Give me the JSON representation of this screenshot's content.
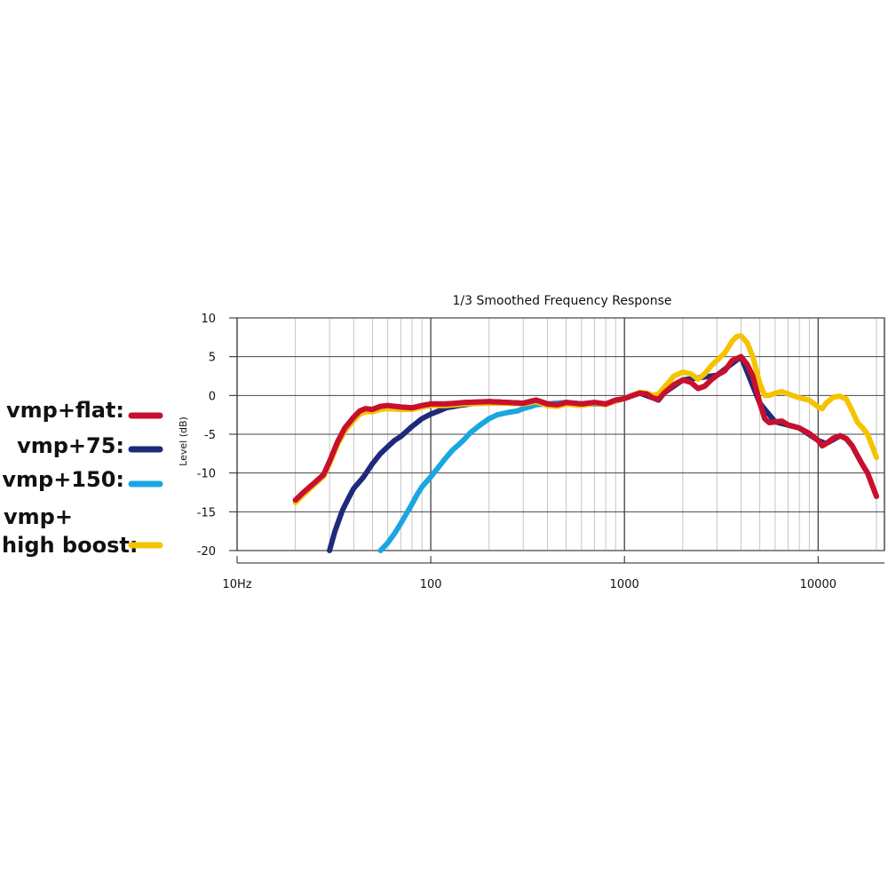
{
  "chart_data": {
    "type": "line",
    "title": "1/3 Smoothed Frequency Response",
    "xlabel": "",
    "ylabel": "Level (dB)",
    "xscale": "log",
    "xlim": [
      10,
      22000
    ],
    "ylim": [
      -20,
      10
    ],
    "xticks": [
      {
        "value": 10,
        "label": "10Hz"
      },
      {
        "value": 100,
        "label": "100"
      },
      {
        "value": 1000,
        "label": "1000"
      },
      {
        "value": 10000,
        "label": "10000"
      }
    ],
    "yticks": [
      {
        "value": 10,
        "label": "10"
      },
      {
        "value": 5,
        "label": "5"
      },
      {
        "value": 0,
        "label": "0"
      },
      {
        "value": -5,
        "label": "-5"
      },
      {
        "value": -10,
        "label": "-10"
      },
      {
        "value": -15,
        "label": "-15"
      },
      {
        "value": -20,
        "label": "-20"
      }
    ],
    "grid": true,
    "legend_position": "left",
    "series": [
      {
        "name": "vmp+flat:",
        "legend": [
          "vmp+flat:"
        ],
        "color": "#c8102e",
        "points": [
          [
            20,
            -13.5
          ],
          [
            22,
            -12.5
          ],
          [
            25,
            -11.3
          ],
          [
            28,
            -10.2
          ],
          [
            30,
            -8.5
          ],
          [
            33,
            -6
          ],
          [
            36,
            -4.2
          ],
          [
            40,
            -2.8
          ],
          [
            43,
            -2
          ],
          [
            46,
            -1.7
          ],
          [
            50,
            -1.8
          ],
          [
            55,
            -1.4
          ],
          [
            60,
            -1.3
          ],
          [
            70,
            -1.5
          ],
          [
            80,
            -1.6
          ],
          [
            90,
            -1.3
          ],
          [
            100,
            -1.1
          ],
          [
            120,
            -1.1
          ],
          [
            150,
            -0.9
          ],
          [
            200,
            -0.8
          ],
          [
            250,
            -0.9
          ],
          [
            300,
            -1
          ],
          [
            350,
            -0.6
          ],
          [
            400,
            -1.1
          ],
          [
            450,
            -1.2
          ],
          [
            500,
            -0.9
          ],
          [
            600,
            -1.1
          ],
          [
            700,
            -0.9
          ],
          [
            800,
            -1.1
          ],
          [
            900,
            -0.6
          ],
          [
            1000,
            -0.4
          ],
          [
            1100,
            0
          ],
          [
            1200,
            0.3
          ],
          [
            1300,
            0.2
          ],
          [
            1400,
            -0.3
          ],
          [
            1500,
            -0.5
          ],
          [
            1600,
            0.3
          ],
          [
            1800,
            1.4
          ],
          [
            2000,
            2
          ],
          [
            2200,
            1.7
          ],
          [
            2400,
            0.9
          ],
          [
            2600,
            1.2
          ],
          [
            2800,
            2
          ],
          [
            3000,
            2.6
          ],
          [
            3300,
            3.2
          ],
          [
            3600,
            4.5
          ],
          [
            4000,
            5
          ],
          [
            4300,
            4
          ],
          [
            4600,
            2.5
          ],
          [
            5000,
            -1
          ],
          [
            5300,
            -3
          ],
          [
            5600,
            -3.5
          ],
          [
            6000,
            -3.4
          ],
          [
            6500,
            -3.3
          ],
          [
            7000,
            -3.8
          ],
          [
            8000,
            -4.2
          ],
          [
            9000,
            -4.9
          ],
          [
            10000,
            -5.8
          ],
          [
            10500,
            -6.5
          ],
          [
            11000,
            -6.2
          ],
          [
            12000,
            -5.5
          ],
          [
            13000,
            -5.2
          ],
          [
            14000,
            -5.6
          ],
          [
            15000,
            -6.5
          ],
          [
            16000,
            -7.8
          ],
          [
            17000,
            -9
          ],
          [
            18000,
            -10
          ],
          [
            20000,
            -13
          ]
        ]
      },
      {
        "name": "vmp+75:",
        "legend": [
          "vmp+75:"
        ],
        "color": "#1f2a7a",
        "points": [
          [
            30,
            -20
          ],
          [
            32,
            -17.5
          ],
          [
            35,
            -14.8
          ],
          [
            38,
            -13
          ],
          [
            40,
            -12
          ],
          [
            45,
            -10.5
          ],
          [
            50,
            -8.8
          ],
          [
            55,
            -7.5
          ],
          [
            60,
            -6.6
          ],
          [
            65,
            -5.8
          ],
          [
            70,
            -5.3
          ],
          [
            80,
            -4
          ],
          [
            90,
            -3
          ],
          [
            100,
            -2.4
          ],
          [
            110,
            -2
          ],
          [
            120,
            -1.6
          ],
          [
            140,
            -1.3
          ],
          [
            160,
            -1.1
          ],
          [
            200,
            -0.8
          ],
          [
            250,
            -0.9
          ],
          [
            300,
            -1
          ],
          [
            350,
            -0.6
          ],
          [
            400,
            -1.1
          ],
          [
            500,
            -0.9
          ],
          [
            600,
            -1.1
          ],
          [
            800,
            -1.1
          ],
          [
            1000,
            -0.4
          ],
          [
            1200,
            0.3
          ],
          [
            1400,
            -0.3
          ],
          [
            1500,
            -0.6
          ],
          [
            1600,
            0.3
          ],
          [
            2000,
            2
          ],
          [
            3000,
            2.6
          ],
          [
            4000,
            5
          ],
          [
            5000,
            -1
          ],
          [
            6000,
            -3.4
          ],
          [
            8000,
            -4.2
          ],
          [
            10000,
            -5.8
          ],
          [
            11000,
            -6.2
          ],
          [
            13000,
            -5.2
          ],
          [
            14000,
            -5.6
          ],
          [
            15000,
            -6.5
          ]
        ]
      },
      {
        "name": "vmp+150:",
        "legend": [
          "vmp+150:"
        ],
        "color": "#1aa6e0",
        "points": [
          [
            55,
            -20
          ],
          [
            60,
            -19
          ],
          [
            65,
            -17.8
          ],
          [
            70,
            -16.5
          ],
          [
            75,
            -15.2
          ],
          [
            80,
            -14
          ],
          [
            85,
            -12.8
          ],
          [
            90,
            -11.8
          ],
          [
            100,
            -10.5
          ],
          [
            110,
            -9.2
          ],
          [
            120,
            -8
          ],
          [
            130,
            -7
          ],
          [
            140,
            -6.3
          ],
          [
            150,
            -5.6
          ],
          [
            160,
            -4.8
          ],
          [
            180,
            -3.8
          ],
          [
            200,
            -3
          ],
          [
            220,
            -2.5
          ],
          [
            250,
            -2.2
          ],
          [
            280,
            -2
          ],
          [
            300,
            -1.7
          ],
          [
            330,
            -1.4
          ],
          [
            350,
            -1.2
          ],
          [
            400,
            -1.1
          ],
          [
            500,
            -0.9
          ],
          [
            600,
            -1.1
          ],
          [
            800,
            -1.1
          ],
          [
            1000,
            -0.4
          ]
        ]
      },
      {
        "name": "vmp+ high boost:",
        "legend": [
          "vmp+",
          "high boost:"
        ],
        "color": "#f5c300",
        "points": [
          [
            20,
            -13.8
          ],
          [
            22,
            -12.8
          ],
          [
            25,
            -11.5
          ],
          [
            28,
            -10.4
          ],
          [
            30,
            -8.8
          ],
          [
            33,
            -6.3
          ],
          [
            36,
            -4.6
          ],
          [
            40,
            -3.2
          ],
          [
            43,
            -2.4
          ],
          [
            46,
            -2.1
          ],
          [
            50,
            -2.1
          ],
          [
            55,
            -1.8
          ],
          [
            60,
            -1.7
          ],
          [
            70,
            -1.8
          ],
          [
            80,
            -1.8
          ],
          [
            90,
            -1.5
          ],
          [
            100,
            -1.3
          ],
          [
            120,
            -1.3
          ],
          [
            150,
            -1.1
          ],
          [
            200,
            -1
          ],
          [
            250,
            -1
          ],
          [
            300,
            -1.1
          ],
          [
            350,
            -0.8
          ],
          [
            400,
            -1.3
          ],
          [
            450,
            -1.4
          ],
          [
            500,
            -1.1
          ],
          [
            600,
            -1.3
          ],
          [
            700,
            -1
          ],
          [
            800,
            -1.2
          ],
          [
            900,
            -0.7
          ],
          [
            1000,
            -0.4
          ],
          [
            1100,
            0
          ],
          [
            1200,
            0.4
          ],
          [
            1300,
            0.3
          ],
          [
            1400,
            0
          ],
          [
            1500,
            0.2
          ],
          [
            1600,
            1
          ],
          [
            1800,
            2.5
          ],
          [
            2000,
            3
          ],
          [
            2200,
            2.8
          ],
          [
            2400,
            2.1
          ],
          [
            2600,
            2.8
          ],
          [
            2800,
            3.8
          ],
          [
            3000,
            4.5
          ],
          [
            3300,
            5.5
          ],
          [
            3600,
            7
          ],
          [
            3800,
            7.6
          ],
          [
            4000,
            7.7
          ],
          [
            4300,
            6.8
          ],
          [
            4600,
            5
          ],
          [
            5000,
            1.5
          ],
          [
            5300,
            0
          ],
          [
            5600,
            0
          ],
          [
            6000,
            0.3
          ],
          [
            6500,
            0.5
          ],
          [
            7000,
            0.2
          ],
          [
            8000,
            -0.3
          ],
          [
            9000,
            -0.6
          ],
          [
            10000,
            -1.5
          ],
          [
            10500,
            -1.7
          ],
          [
            11000,
            -1
          ],
          [
            12000,
            -0.2
          ],
          [
            13000,
            -0.1
          ],
          [
            14000,
            -0.5
          ],
          [
            15000,
            -2
          ],
          [
            16000,
            -3.5
          ],
          [
            17000,
            -4.2
          ],
          [
            18000,
            -5
          ],
          [
            20000,
            -8
          ]
        ]
      }
    ]
  }
}
